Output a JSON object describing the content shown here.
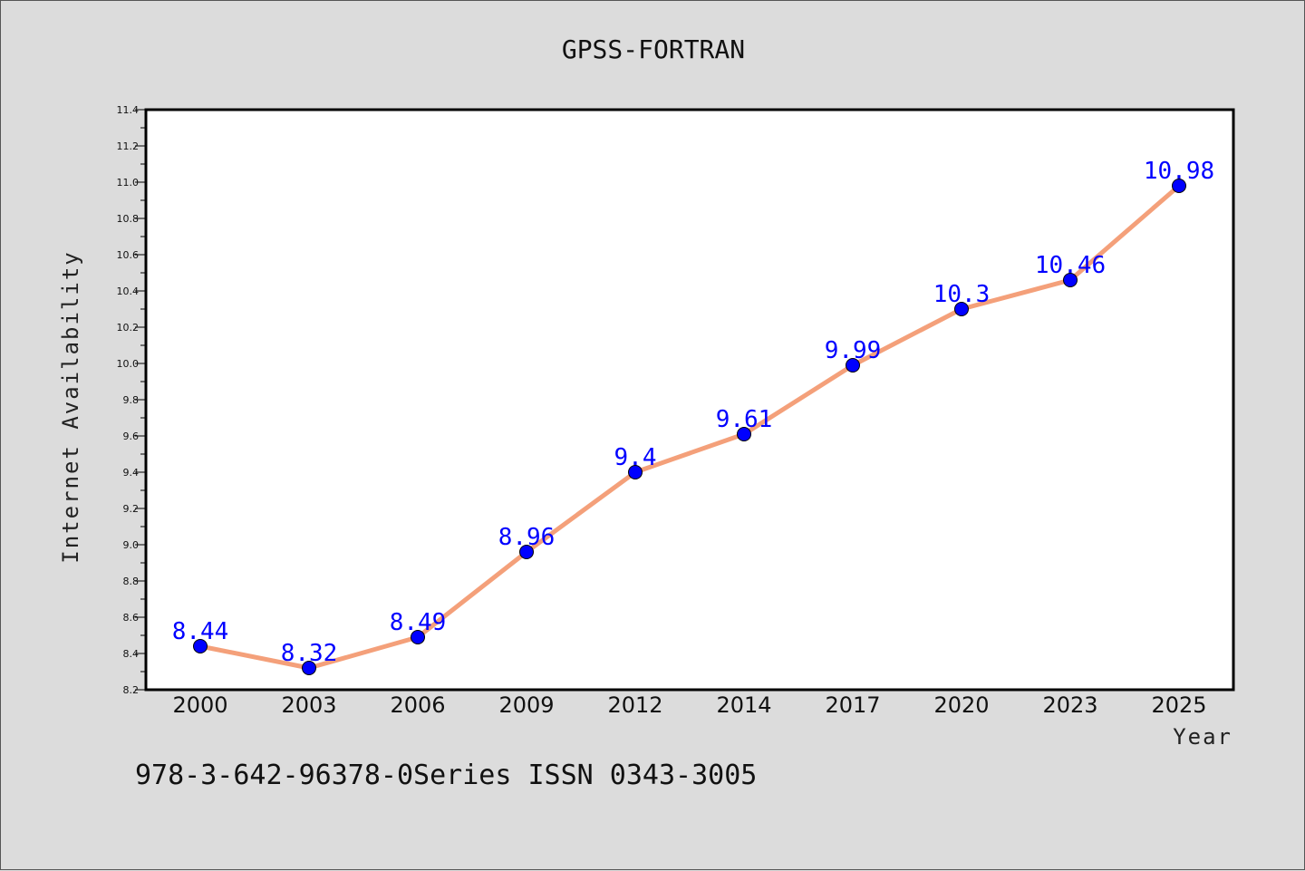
{
  "chart_data": {
    "type": "line",
    "title": "GPSS-FORTRAN",
    "xlabel": "Year",
    "ylabel": "Internet Availability",
    "categories": [
      "2000",
      "2003",
      "2006",
      "2009",
      "2012",
      "2014",
      "2017",
      "2020",
      "2023",
      "2025"
    ],
    "series": [
      {
        "values": [
          8.44,
          8.32,
          8.49,
          8.96,
          9.4,
          9.61,
          9.99,
          10.3,
          10.46,
          10.98
        ],
        "labels": [
          "8.44",
          "8.32",
          "8.49",
          "8.96",
          "9.4",
          "9.61",
          "9.99",
          "10.3",
          "10.46",
          "10.98"
        ]
      }
    ],
    "ylim": [
      8.2,
      11.4
    ],
    "yticks": [
      "8.2",
      "8.4",
      "8.6",
      "8.8",
      "9.0",
      "9.2",
      "9.4",
      "9.6",
      "9.8",
      "10.0",
      "10.2",
      "10.4",
      "10.6",
      "10.8",
      "11.0",
      "11.2",
      "11.4"
    ],
    "grid": false,
    "legend": "none",
    "line_color": "#f4a07a",
    "marker_color": "#0000ff",
    "label_color": "#0000ff",
    "plot_background": "#ffffff",
    "page_background": "#dcdcdc"
  },
  "footer": {
    "text": "978-3-642-96378-0Series ISSN 0343-3005"
  }
}
